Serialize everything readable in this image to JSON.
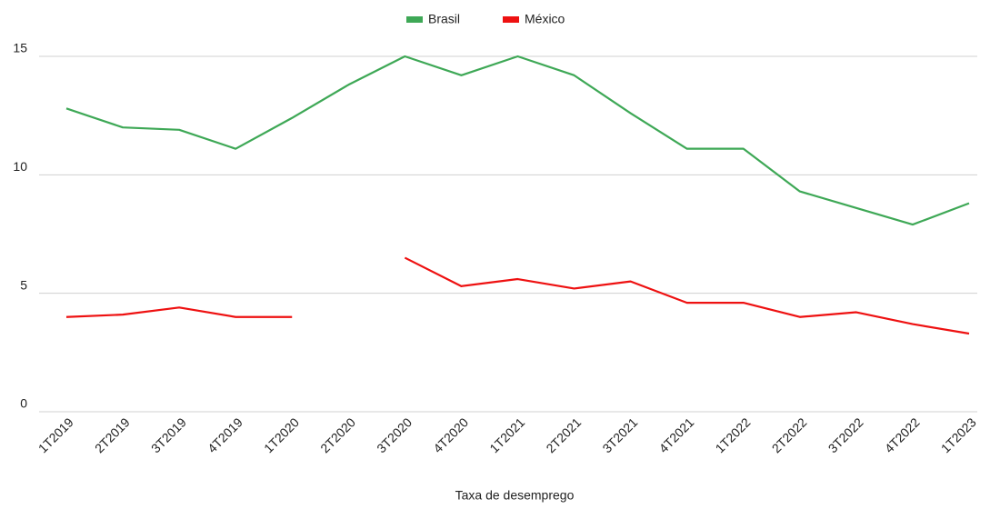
{
  "chart_data": {
    "type": "line",
    "x_label": "Taxa de desemprego",
    "categories": [
      "1T2019",
      "2T2019",
      "3T2019",
      "4T2019",
      "1T2020",
      "2T2020",
      "3T2020",
      "4T2020",
      "1T2021",
      "2T2021",
      "3T2021",
      "4T2021",
      "1T2022",
      "2T2022",
      "3T2022",
      "4T2022",
      "1T2023"
    ],
    "series": [
      {
        "name": "Brasil",
        "color": "#3ea856",
        "values": [
          12.8,
          12.0,
          11.9,
          11.1,
          12.4,
          13.8,
          15.0,
          14.2,
          15.0,
          14.2,
          12.6,
          11.1,
          11.1,
          9.3,
          8.6,
          7.9,
          8.8
        ]
      },
      {
        "name": "México",
        "color": "#ee1111",
        "values": [
          4.0,
          4.1,
          4.4,
          4.0,
          4.0,
          null,
          6.5,
          5.3,
          5.6,
          5.2,
          5.5,
          4.6,
          4.6,
          4.0,
          4.2,
          3.7,
          3.3
        ]
      }
    ],
    "ylim": [
      0,
      15
    ],
    "yticks": [
      0,
      5,
      10,
      15
    ],
    "grid": true,
    "legend": "top"
  }
}
